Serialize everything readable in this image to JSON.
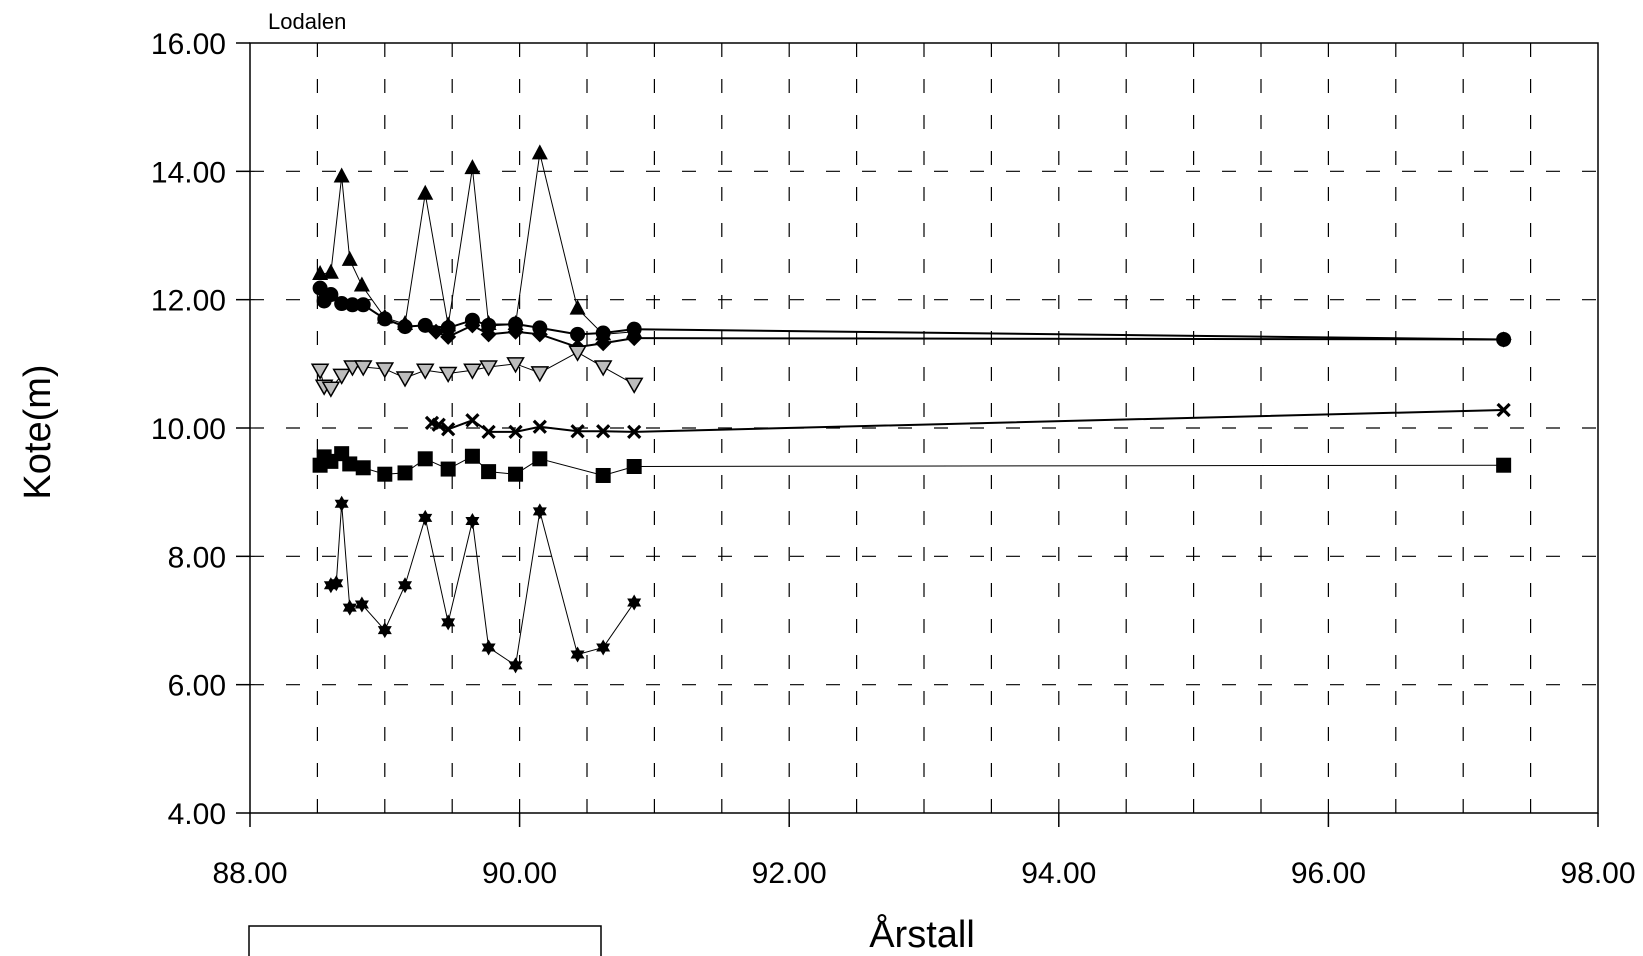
{
  "chart_data": {
    "type": "line",
    "title": "Lodalen",
    "xlabel": "Årstall",
    "ylabel": "Kote(m)",
    "xlim": [
      88,
      98
    ],
    "ylim": [
      4,
      16
    ],
    "x_ticks": [
      "88.00",
      "90.00",
      "92.00",
      "94.00",
      "96.00",
      "98.00"
    ],
    "y_ticks": [
      "4.00",
      "6.00",
      "8.00",
      "10.00",
      "12.00",
      "14.00",
      "16.00"
    ],
    "grid": true,
    "legend": "none",
    "series": [
      {
        "marker": "triangle",
        "points": [
          [
            88.52,
            12.4
          ],
          [
            88.6,
            12.42
          ],
          [
            88.68,
            13.92
          ],
          [
            88.74,
            12.62
          ],
          [
            88.83,
            12.22
          ],
          [
            89.0,
            11.72
          ],
          [
            89.15,
            11.62
          ],
          [
            89.3,
            13.65
          ],
          [
            89.47,
            11.6
          ],
          [
            89.65,
            14.05
          ],
          [
            89.77,
            11.62
          ],
          [
            89.97,
            11.62
          ],
          [
            90.15,
            14.28
          ],
          [
            90.43,
            11.86
          ],
          [
            90.62,
            11.46
          ],
          [
            90.85,
            11.5
          ]
        ],
        "stroke_width": 1
      },
      {
        "marker": "circle",
        "points": [
          [
            88.52,
            12.18
          ],
          [
            88.55,
            11.98
          ],
          [
            88.6,
            12.08
          ],
          [
            88.68,
            11.94
          ],
          [
            88.76,
            11.92
          ],
          [
            88.84,
            11.92
          ],
          [
            89.0,
            11.7
          ],
          [
            89.15,
            11.58
          ],
          [
            89.3,
            11.6
          ],
          [
            89.47,
            11.56
          ],
          [
            89.65,
            11.68
          ],
          [
            89.77,
            11.6
          ],
          [
            89.97,
            11.62
          ],
          [
            90.15,
            11.56
          ],
          [
            90.43,
            11.46
          ],
          [
            90.62,
            11.48
          ],
          [
            90.85,
            11.54
          ],
          [
            97.3,
            11.38
          ]
        ],
        "stroke_width": 2
      },
      {
        "marker": "diamond",
        "points": [
          [
            89.38,
            11.5
          ],
          [
            89.47,
            11.42
          ],
          [
            89.65,
            11.6
          ],
          [
            89.77,
            11.46
          ],
          [
            89.97,
            11.5
          ],
          [
            90.15,
            11.46
          ],
          [
            90.43,
            11.26
          ],
          [
            90.62,
            11.32
          ],
          [
            90.85,
            11.4
          ],
          [
            97.3,
            11.38
          ]
        ],
        "stroke_width": 2
      },
      {
        "marker": "triangle-down-open",
        "points": [
          [
            88.52,
            10.9
          ],
          [
            88.55,
            10.65
          ],
          [
            88.6,
            10.62
          ],
          [
            88.68,
            10.82
          ],
          [
            88.76,
            10.95
          ],
          [
            88.84,
            10.95
          ],
          [
            89.0,
            10.92
          ],
          [
            89.15,
            10.78
          ],
          [
            89.3,
            10.9
          ],
          [
            89.47,
            10.85
          ],
          [
            89.65,
            10.9
          ],
          [
            89.77,
            10.95
          ],
          [
            89.97,
            11.0
          ],
          [
            90.15,
            10.86
          ],
          [
            90.43,
            11.18
          ],
          [
            90.62,
            10.95
          ],
          [
            90.85,
            10.68
          ]
        ],
        "stroke_width": 1
      },
      {
        "marker": "x",
        "points": [
          [
            89.35,
            10.08
          ],
          [
            89.4,
            10.05
          ],
          [
            89.47,
            9.98
          ],
          [
            89.65,
            10.12
          ],
          [
            89.77,
            9.94
          ],
          [
            89.97,
            9.94
          ],
          [
            90.15,
            10.02
          ],
          [
            90.43,
            9.95
          ],
          [
            90.62,
            9.95
          ],
          [
            90.85,
            9.94
          ],
          [
            97.3,
            10.28
          ]
        ],
        "stroke_width": 2
      },
      {
        "marker": "square",
        "points": [
          [
            88.52,
            9.42
          ],
          [
            88.55,
            9.55
          ],
          [
            88.6,
            9.48
          ],
          [
            88.68,
            9.6
          ],
          [
            88.74,
            9.44
          ],
          [
            88.84,
            9.38
          ],
          [
            89.0,
            9.28
          ],
          [
            89.15,
            9.3
          ],
          [
            89.3,
            9.52
          ],
          [
            89.47,
            9.36
          ],
          [
            89.65,
            9.56
          ],
          [
            89.77,
            9.32
          ],
          [
            89.97,
            9.28
          ],
          [
            90.15,
            9.52
          ],
          [
            90.62,
            9.26
          ],
          [
            90.85,
            9.4
          ],
          [
            97.3,
            9.42
          ]
        ],
        "stroke_width": 1
      },
      {
        "marker": "star",
        "points": [
          [
            88.6,
            7.55
          ],
          [
            88.64,
            7.58
          ],
          [
            88.68,
            8.82
          ],
          [
            88.74,
            7.2
          ],
          [
            88.83,
            7.25
          ],
          [
            89.0,
            6.85
          ],
          [
            89.15,
            7.55
          ],
          [
            89.3,
            8.6
          ],
          [
            89.47,
            6.97
          ],
          [
            89.65,
            8.55
          ],
          [
            89.77,
            6.58
          ],
          [
            89.97,
            6.3
          ],
          [
            90.15,
            8.7
          ],
          [
            90.43,
            6.47
          ],
          [
            90.62,
            6.58
          ],
          [
            90.85,
            7.28
          ]
        ],
        "stroke_width": 1
      }
    ]
  }
}
